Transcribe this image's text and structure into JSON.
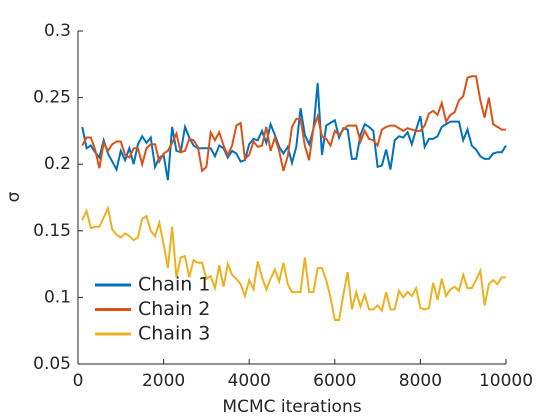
{
  "chart_data": {
    "type": "line",
    "xlabel": "MCMC iterations",
    "ylabel": "σ",
    "x": [
      100,
      200,
      300,
      400,
      500,
      600,
      700,
      800,
      900,
      1000,
      1100,
      1200,
      1300,
      1400,
      1500,
      1600,
      1700,
      1800,
      1900,
      2000,
      2100,
      2200,
      2300,
      2400,
      2500,
      2600,
      2700,
      2800,
      2900,
      3000,
      3100,
      3200,
      3300,
      3400,
      3500,
      3600,
      3700,
      3800,
      3900,
      4000,
      4100,
      4200,
      4300,
      4400,
      4500,
      4600,
      4700,
      4800,
      4900,
      5000,
      5100,
      5200,
      5300,
      5400,
      5500,
      5600,
      5700,
      5800,
      5900,
      6000,
      6100,
      6200,
      6300,
      6400,
      6500,
      6600,
      6700,
      6800,
      6900,
      7000,
      7100,
      7200,
      7300,
      7400,
      7500,
      7600,
      7700,
      7800,
      7900,
      8000,
      8100,
      8200,
      8300,
      8400,
      8500,
      8600,
      8700,
      8800,
      8900,
      9000,
      9100,
      9200,
      9300,
      9400,
      9500,
      9600,
      9700,
      9800,
      9900,
      10000
    ],
    "series": [
      {
        "name": "Chain 1",
        "color": "#0072bd",
        "values": [
          0.228,
          0.212,
          0.214,
          0.209,
          0.205,
          0.218,
          0.208,
          0.202,
          0.196,
          0.21,
          0.203,
          0.212,
          0.2,
          0.215,
          0.221,
          0.216,
          0.22,
          0.198,
          0.205,
          0.207,
          0.188,
          0.228,
          0.21,
          0.209,
          0.228,
          0.22,
          0.214,
          0.212,
          0.212,
          0.212,
          0.212,
          0.206,
          0.214,
          0.212,
          0.205,
          0.21,
          0.208,
          0.202,
          0.203,
          0.215,
          0.219,
          0.218,
          0.225,
          0.216,
          0.23,
          0.222,
          0.213,
          0.208,
          0.213,
          0.201,
          0.213,
          0.242,
          0.222,
          0.215,
          0.226,
          0.261,
          0.207,
          0.229,
          0.231,
          0.233,
          0.22,
          0.227,
          0.226,
          0.204,
          0.204,
          0.222,
          0.23,
          0.228,
          0.225,
          0.198,
          0.199,
          0.211,
          0.196,
          0.218,
          0.221,
          0.22,
          0.224,
          0.215,
          0.226,
          0.236,
          0.213,
          0.219,
          0.219,
          0.221,
          0.228,
          0.23,
          0.232,
          0.232,
          0.232,
          0.218,
          0.226,
          0.214,
          0.211,
          0.206,
          0.204,
          0.204,
          0.208,
          0.209,
          0.209,
          0.214
        ]
      },
      {
        "name": "Chain 2",
        "color": "#d95319",
        "values": [
          0.214,
          0.22,
          0.22,
          0.211,
          0.197,
          0.216,
          0.21,
          0.215,
          0.217,
          0.217,
          0.207,
          0.205,
          0.212,
          0.212,
          0.2,
          0.212,
          0.215,
          0.215,
          0.202,
          0.208,
          0.21,
          0.216,
          0.223,
          0.209,
          0.21,
          0.219,
          0.218,
          0.213,
          0.195,
          0.198,
          0.224,
          0.218,
          0.224,
          0.214,
          0.207,
          0.214,
          0.229,
          0.231,
          0.204,
          0.207,
          0.217,
          0.213,
          0.214,
          0.228,
          0.21,
          0.22,
          0.21,
          0.195,
          0.206,
          0.228,
          0.234,
          0.234,
          0.214,
          0.203,
          0.227,
          0.236,
          0.221,
          0.219,
          0.214,
          0.225,
          0.222,
          0.226,
          0.229,
          0.229,
          0.229,
          0.217,
          0.225,
          0.219,
          0.218,
          0.214,
          0.226,
          0.228,
          0.229,
          0.229,
          0.227,
          0.225,
          0.227,
          0.226,
          0.225,
          0.225,
          0.229,
          0.238,
          0.24,
          0.237,
          0.246,
          0.232,
          0.237,
          0.239,
          0.248,
          0.251,
          0.265,
          0.266,
          0.266,
          0.248,
          0.235,
          0.25,
          0.23,
          0.228,
          0.226,
          0.226
        ]
      },
      {
        "name": "Chain 3",
        "color": "#edb120",
        "values": [
          0.158,
          0.165,
          0.152,
          0.153,
          0.153,
          0.16,
          0.167,
          0.151,
          0.147,
          0.145,
          0.148,
          0.146,
          0.143,
          0.145,
          0.159,
          0.161,
          0.15,
          0.146,
          0.156,
          0.14,
          0.122,
          0.153,
          0.115,
          0.13,
          0.131,
          0.115,
          0.128,
          0.126,
          0.126,
          0.114,
          0.116,
          0.107,
          0.124,
          0.108,
          0.125,
          0.117,
          0.114,
          0.11,
          0.101,
          0.113,
          0.106,
          0.127,
          0.115,
          0.106,
          0.114,
          0.121,
          0.112,
          0.126,
          0.11,
          0.104,
          0.104,
          0.104,
          0.13,
          0.104,
          0.104,
          0.122,
          0.122,
          0.113,
          0.1,
          0.083,
          0.083,
          0.102,
          0.119,
          0.091,
          0.104,
          0.093,
          0.102,
          0.091,
          0.091,
          0.094,
          0.09,
          0.104,
          0.091,
          0.091,
          0.105,
          0.1,
          0.104,
          0.101,
          0.107,
          0.092,
          0.091,
          0.092,
          0.111,
          0.098,
          0.114,
          0.101,
          0.106,
          0.108,
          0.105,
          0.117,
          0.107,
          0.107,
          0.113,
          0.12,
          0.094,
          0.11,
          0.113,
          0.11,
          0.115,
          0.115
        ]
      }
    ],
    "xlim": [
      0,
      10000
    ],
    "xticks": [
      0,
      2000,
      4000,
      6000,
      8000,
      10000
    ],
    "ylim": [
      0.05,
      0.3
    ],
    "yticks": [
      0.05,
      0.1,
      0.15,
      0.2,
      0.25,
      0.3
    ],
    "grid": false,
    "legend": "lower left"
  }
}
